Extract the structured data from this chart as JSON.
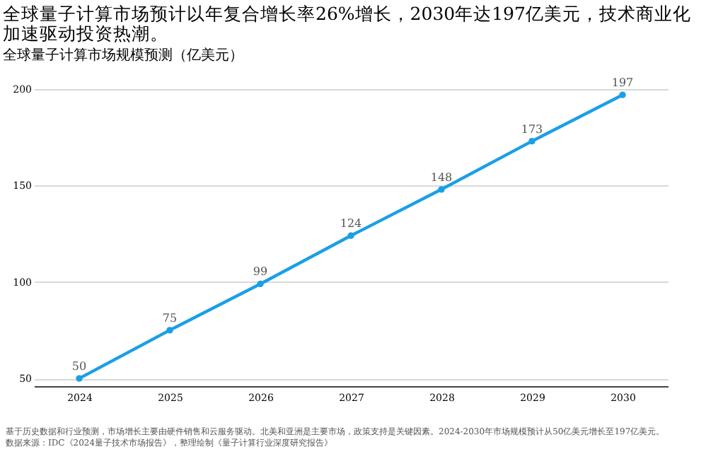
{
  "chart_data": {
    "type": "line",
    "title": "全球量子计算市场预计以年复合增长率26%增长，2030年达197亿美元，技术商业化加速驱动投资热潮。",
    "subtitle": "全球量子计算市场规模预测（亿美元）",
    "categories": [
      "2024",
      "2025",
      "2026",
      "2027",
      "2028",
      "2029",
      "2030"
    ],
    "series": [
      {
        "color": "#1a9fe6",
        "values": [
          50,
          75,
          99,
          124,
          148,
          173,
          197
        ]
      }
    ],
    "ylim": [
      46,
      200
    ],
    "yticks": [
      50,
      100,
      150,
      200
    ],
    "grid": "y",
    "marker": "circle",
    "data_labels": true,
    "annotations": [
      "基于历史数据和行业预测，市场增长主要由硬件销售和云服务驱动。北美和亚洲是主要市场，政策支持是关键因素。2024-2030年市场规模预计从50亿美元增长至197亿美元。",
      "数据来源：IDC《2024量子技术市场报告》，整理绘制《量子计算行业深度研究报告》"
    ]
  }
}
